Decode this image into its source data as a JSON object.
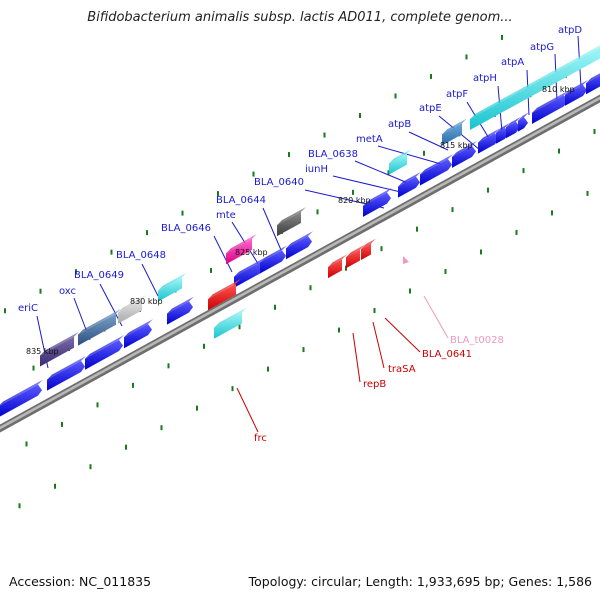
{
  "title": "Bifidobacterium animalis subsp. lactis AD011, complete genom...",
  "footer": {
    "accession": "Accession: NC_011835",
    "summary": "Topology: circular; Length: 1,933,695 bp; Genes: 1,586"
  },
  "colors": {
    "background": "#ffffff",
    "backbone": "#8a8a8a",
    "forward_label": "#1a1ad0",
    "reverse_label": "#cc0000",
    "trna_label": "#ee99bb",
    "tick_mark": "#1a7a1a"
  },
  "kbp_ticks": [
    "810 kbp",
    "815 kbp",
    "820 kbp",
    "825 kbp",
    "830 kbp",
    "835 kbp"
  ],
  "forward_labels": [
    "atpD",
    "atpG",
    "atpA",
    "atpH",
    "atpF",
    "atpE",
    "atpB",
    "metA",
    "BLA_0638",
    "iunH",
    "BLA_0640",
    "BLA_0644",
    "mte",
    "BLA_0646",
    "BLA_0648",
    "BLA_0649",
    "oxc",
    "eriC"
  ],
  "reverse_labels": [
    "BLA_t0028",
    "BLA_0641",
    "traSA",
    "repB",
    "frc"
  ]
}
